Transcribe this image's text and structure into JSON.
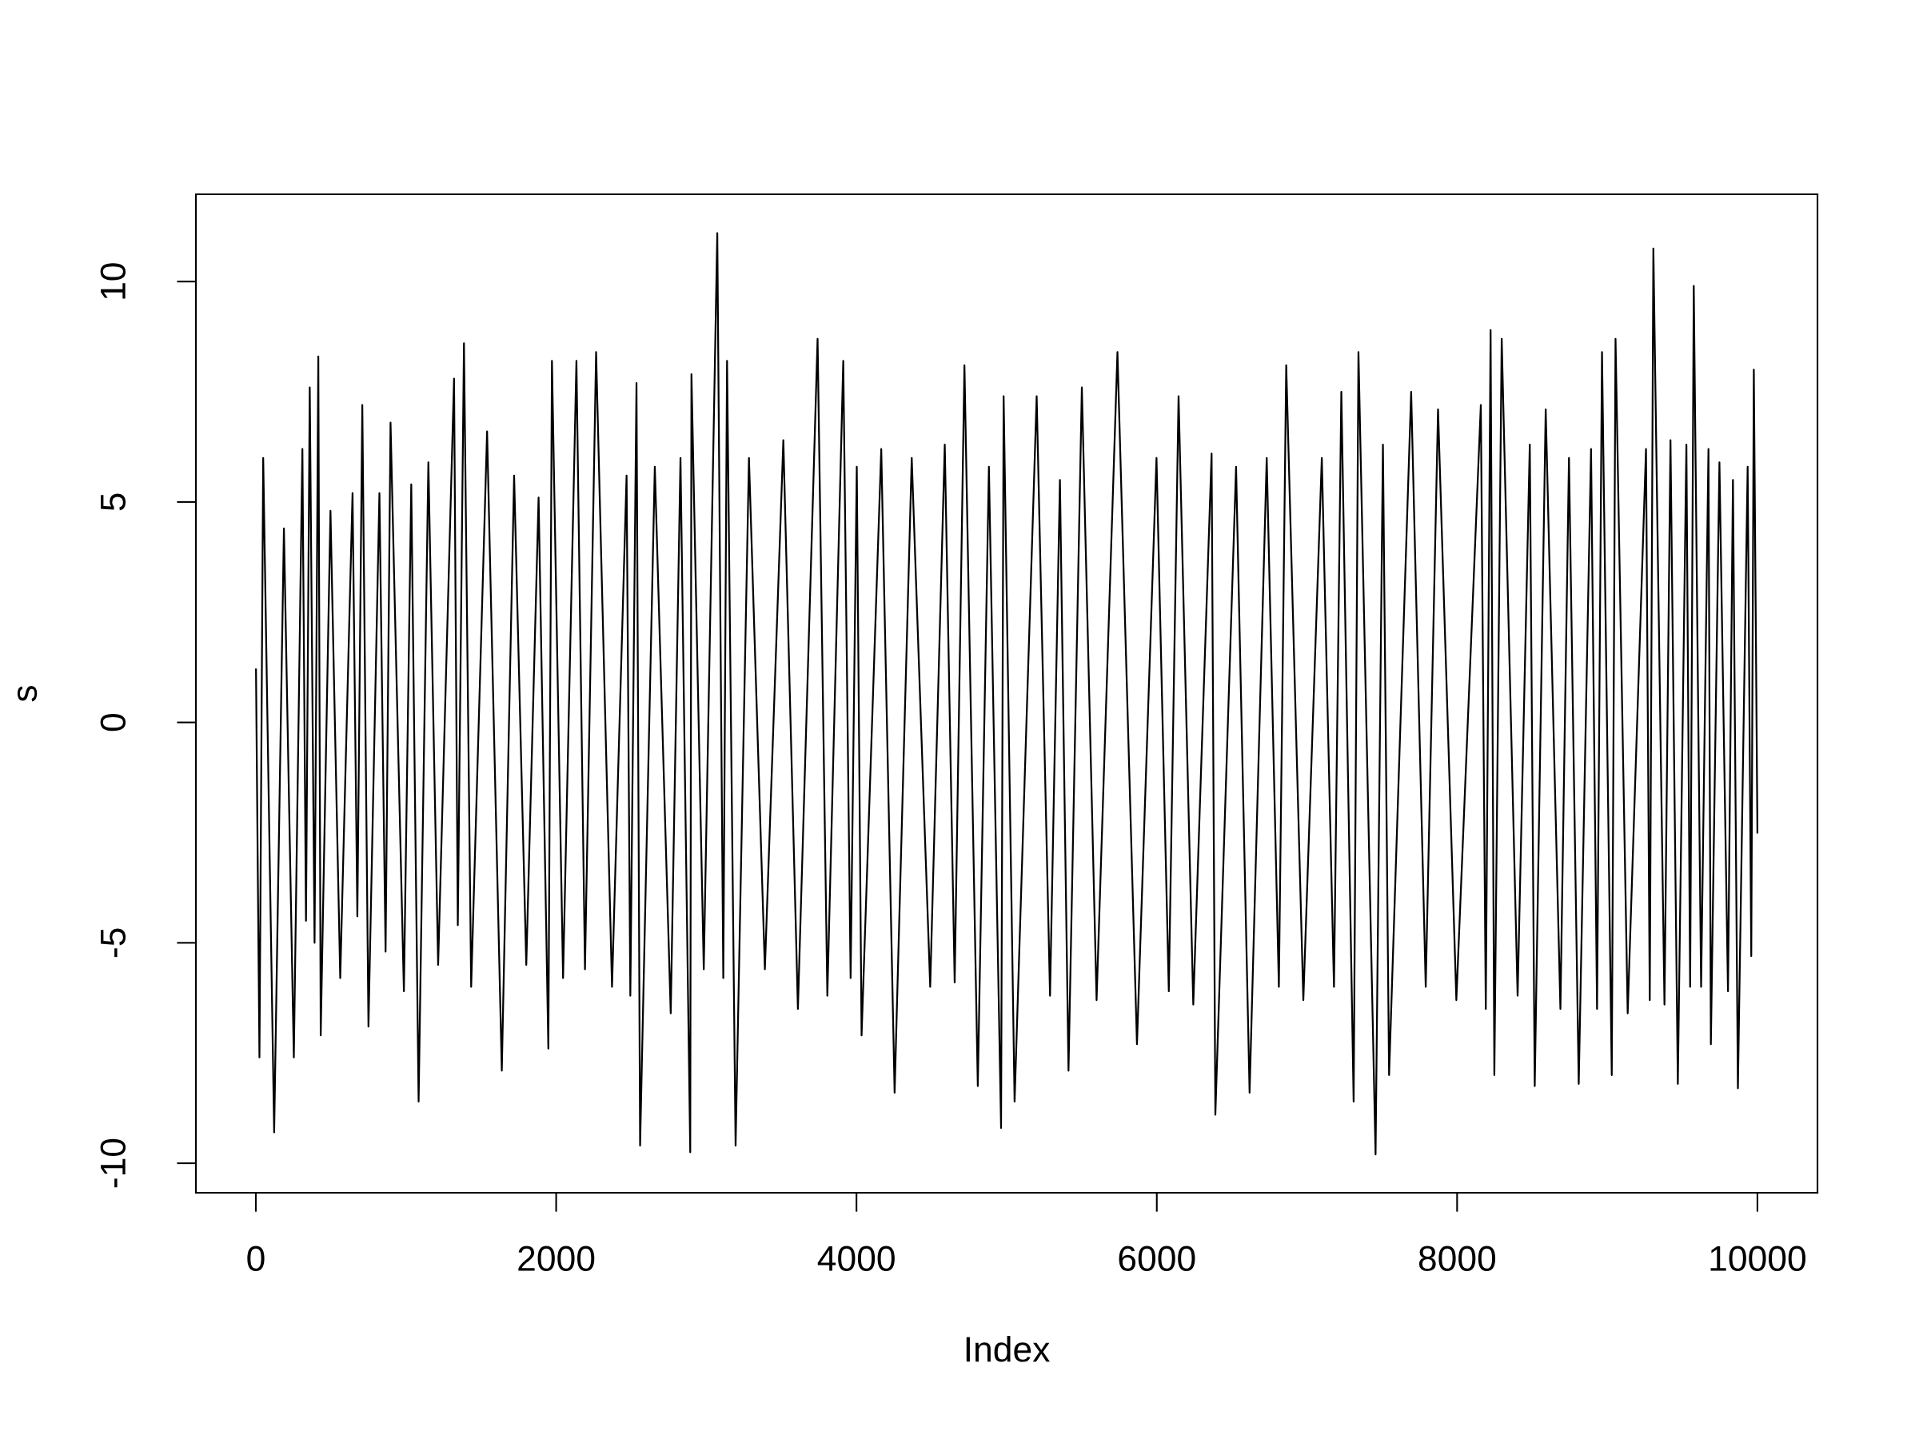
{
  "chart_data": {
    "type": "line",
    "xlabel": "Index",
    "ylabel": "s",
    "x": [
      1,
      24,
      49,
      122,
      187,
      253,
      310,
      334,
      359,
      391,
      416,
      432,
      497,
      562,
      644,
      676,
      709,
      750,
      823,
      864,
      897,
      986,
      1035,
      1084,
      1149,
      1214,
      1320,
      1345,
      1386,
      1434,
      1540,
      1638,
      1720,
      1801,
      1883,
      1948,
      1972,
      2046,
      2135,
      2192,
      2266,
      2372,
      2469,
      2494,
      2535,
      2559,
      2657,
      2763,
      2828,
      2893,
      2901,
      2983,
      3073,
      3113,
      3138,
      3195,
      3284,
      3390,
      3513,
      3610,
      3741,
      3806,
      3912,
      3961,
      4002,
      4034,
      4165,
      4254,
      4368,
      4491,
      4588,
      4654,
      4719,
      4808,
      4882,
      4963,
      4980,
      5053,
      5200,
      5289,
      5355,
      5412,
      5501,
      5599,
      5738,
      5868,
      5998,
      6080,
      6145,
      6243,
      6365,
      6390,
      6528,
      6618,
      6732,
      6813,
      6862,
      6976,
      7099,
      7180,
      7229,
      7311,
      7343,
      7457,
      7506,
      7547,
      7694,
      7791,
      7873,
      7995,
      8158,
      8191,
      8223,
      8248,
      8297,
      8403,
      8484,
      8517,
      8590,
      8688,
      8745,
      8810,
      8892,
      8932,
      8965,
      9030,
      9055,
      9136,
      9258,
      9283,
      9307,
      9381,
      9421,
      9470,
      9527,
      9552,
      9576,
      9625,
      9674,
      9690,
      9747,
      9804,
      9837,
      9870,
      9935,
      9959,
      9976,
      10000
    ],
    "series": [
      {
        "color": "#000000",
        "values": [
          1.2,
          -7.6,
          6.0,
          -9.3,
          4.4,
          -7.6,
          6.2,
          -4.5,
          7.6,
          -5.0,
          8.3,
          -7.1,
          4.8,
          -5.8,
          5.2,
          -4.4,
          7.2,
          -6.9,
          5.2,
          -5.2,
          6.8,
          -6.1,
          5.4,
          -8.6,
          5.9,
          -5.5,
          7.8,
          -4.6,
          8.6,
          -6.0,
          6.6,
          -7.9,
          5.6,
          -5.5,
          5.1,
          -7.4,
          8.2,
          -5.8,
          8.2,
          -5.6,
          8.4,
          -6.0,
          5.6,
          -6.2,
          7.7,
          -9.6,
          5.8,
          -6.6,
          6.0,
          -9.75,
          7.9,
          -5.6,
          11.1,
          -5.8,
          8.2,
          -9.6,
          6.0,
          -5.6,
          6.4,
          -6.5,
          8.7,
          -6.2,
          8.2,
          -5.8,
          5.8,
          -7.1,
          6.2,
          -8.4,
          6.0,
          -6.0,
          6.3,
          -5.9,
          8.1,
          -8.25,
          5.8,
          -9.2,
          7.4,
          -8.6,
          7.4,
          -6.2,
          5.5,
          -7.9,
          7.6,
          -6.3,
          8.4,
          -7.3,
          6.0,
          -6.1,
          7.4,
          -6.4,
          6.1,
          -8.9,
          5.8,
          -8.4,
          6.0,
          -6.0,
          8.1,
          -6.3,
          6.0,
          -6.0,
          7.5,
          -8.6,
          8.4,
          -9.8,
          6.3,
          -8.0,
          7.5,
          -6.0,
          7.1,
          -6.3,
          7.2,
          -6.5,
          8.9,
          -8.0,
          8.7,
          -6.2,
          6.3,
          -8.25,
          7.1,
          -6.5,
          6.0,
          -8.2,
          6.2,
          -6.5,
          8.4,
          -8.0,
          8.7,
          -6.6,
          6.2,
          -6.3,
          10.75,
          -6.4,
          6.4,
          -8.2,
          6.3,
          -6.0,
          9.9,
          -6.0,
          6.2,
          -7.3,
          5.9,
          -6.1,
          5.5,
          -8.3,
          5.8,
          -5.3,
          8.0,
          -2.5
        ]
      }
    ],
    "xlim": [
      -399,
      10400
    ],
    "ylim": [
      -10.67,
      11.98
    ],
    "xticks": [
      0,
      2000,
      4000,
      6000,
      8000,
      10000
    ],
    "yticks": [
      -10,
      -5,
      0,
      5,
      10
    ],
    "line_style": "solid"
  }
}
